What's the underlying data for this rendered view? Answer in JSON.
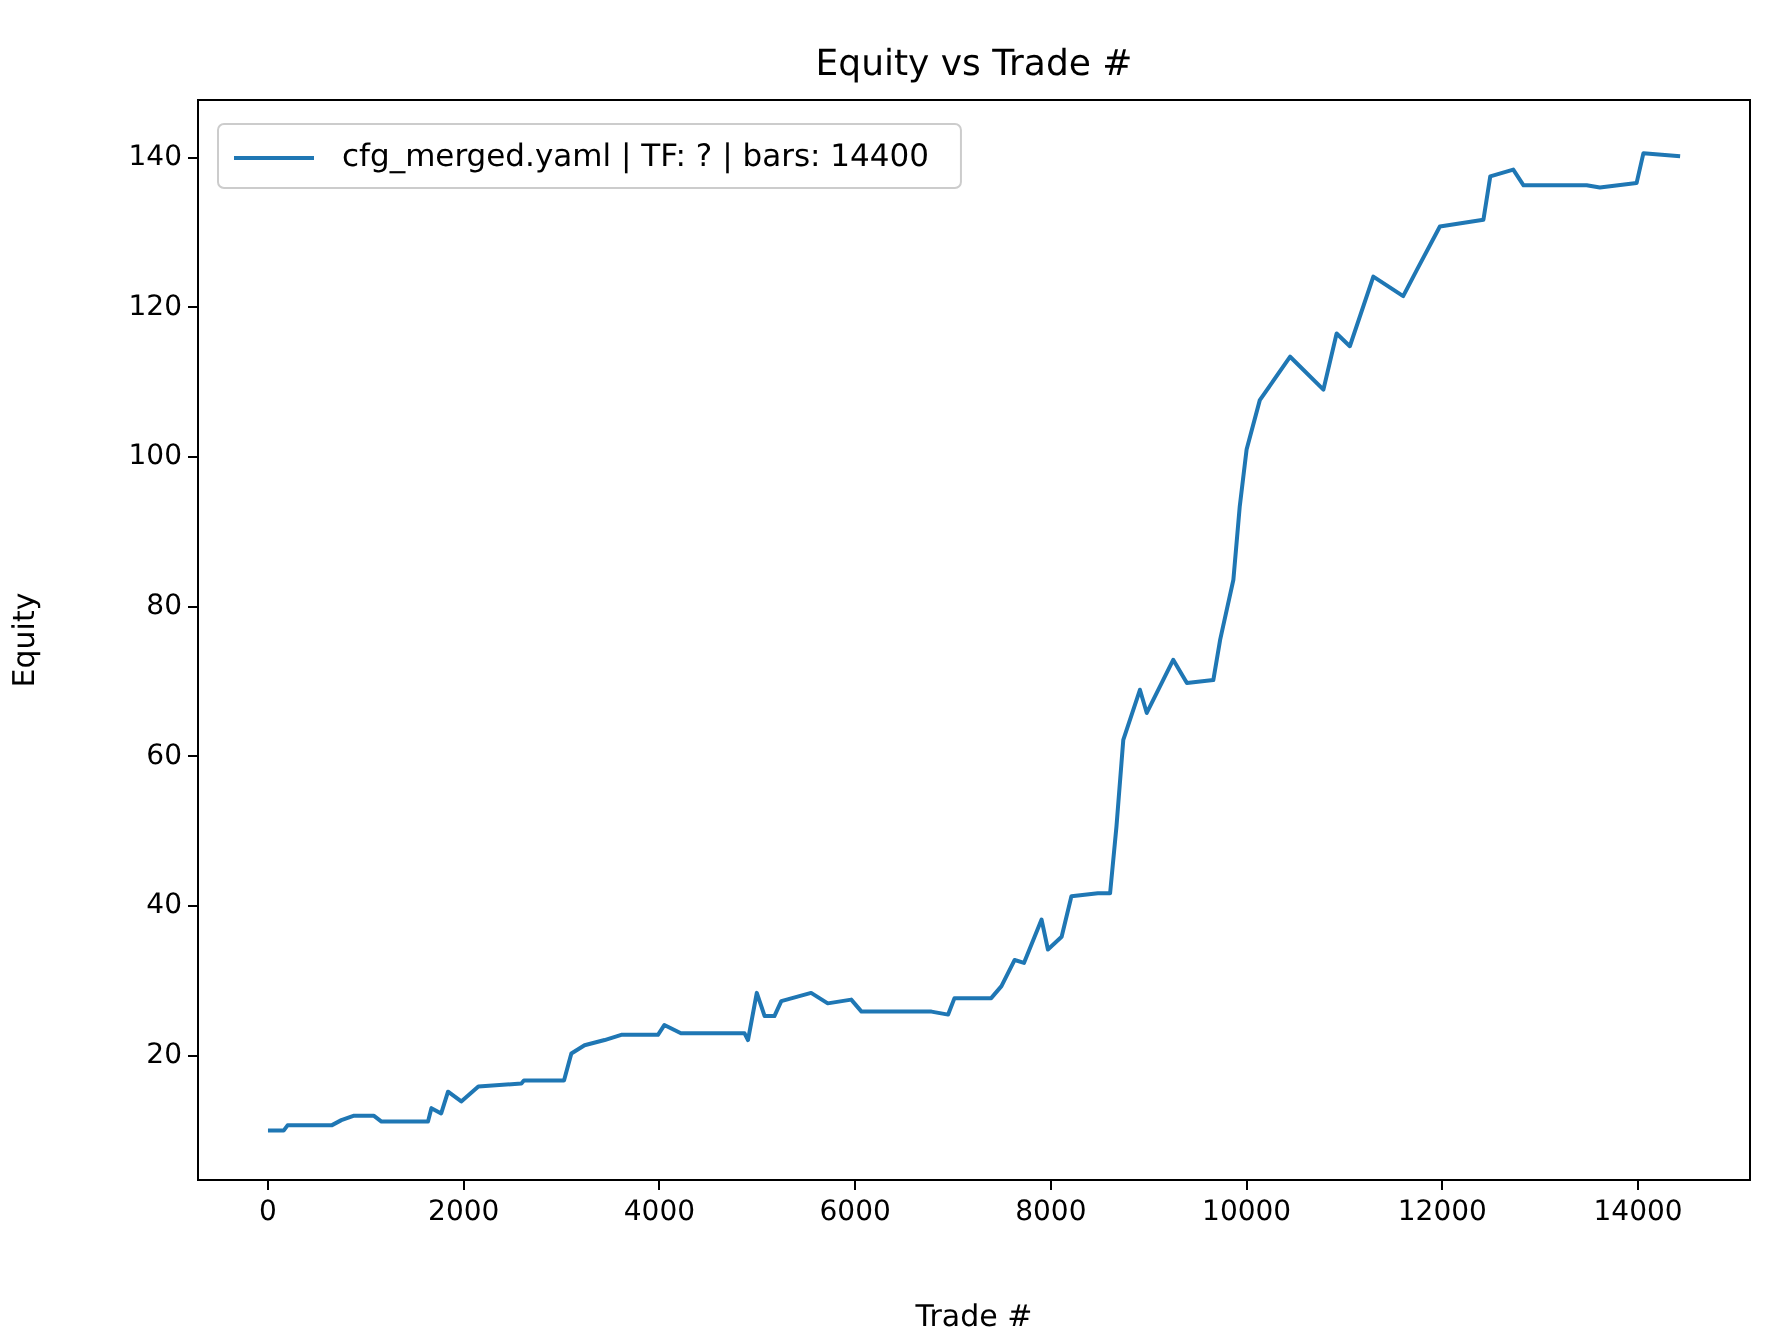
{
  "chart_data": {
    "type": "line",
    "title": "Equity vs Trade #",
    "xlabel": "Trade #",
    "ylabel": "Equity",
    "xlim": [
      -715,
      15144
    ],
    "ylim": [
      3.4,
      147.7
    ],
    "xticks": [
      0,
      2000,
      4000,
      6000,
      8000,
      10000,
      12000,
      14000
    ],
    "yticks": [
      20,
      40,
      60,
      80,
      100,
      120,
      140
    ],
    "legend": "top left",
    "grid": false,
    "marker": "none",
    "line_style": "solid",
    "series": [
      {
        "name": "cfg_merged.yaml | TF: ? | bars: 14400",
        "color": "#1f77b4",
        "x": [
          0,
          160,
          200,
          650,
          750,
          880,
          1080,
          1160,
          1635,
          1670,
          1770,
          1840,
          1975,
          2150,
          2590,
          2615,
          3025,
          3100,
          3235,
          3440,
          3610,
          3985,
          4050,
          4220,
          4870,
          4905,
          4995,
          5075,
          5175,
          5245,
          5550,
          5720,
          5960,
          6065,
          6780,
          6950,
          7015,
          7390,
          7495,
          7630,
          7725,
          7905,
          7970,
          8110,
          8210,
          8480,
          8605,
          8670,
          8740,
          8910,
          8980,
          9250,
          9390,
          9660,
          9730,
          9865,
          9930,
          10000,
          10135,
          10445,
          10785,
          10920,
          11055,
          11295,
          11600,
          11740,
          11975,
          12420,
          12490,
          12725,
          12830,
          13475,
          13610,
          13985,
          14055,
          14430
        ],
        "values": [
          10,
          10,
          10.7,
          10.7,
          11.4,
          12,
          12,
          11.2,
          11.2,
          13,
          12.3,
          15.2,
          13.9,
          15.9,
          16.3,
          16.7,
          16.7,
          20.3,
          21.4,
          22.1,
          22.8,
          22.8,
          24.1,
          23,
          23,
          22.1,
          28.4,
          25.3,
          25.3,
          27.3,
          28.4,
          27,
          27.5,
          25.9,
          25.9,
          25.5,
          27.7,
          27.7,
          29.3,
          32.8,
          32.4,
          38.2,
          34.2,
          35.9,
          41.3,
          41.7,
          41.7,
          50.6,
          62.2,
          68.9,
          65.8,
          72.9,
          69.8,
          70.2,
          75.6,
          83.6,
          93.4,
          101,
          107.6,
          113.4,
          109,
          116.5,
          114.8,
          124.1,
          121.5,
          125,
          130.8,
          131.7,
          137.5,
          138.4,
          136.3,
          136.3,
          136,
          136.6,
          140.6,
          140.2
        ]
      }
    ]
  }
}
